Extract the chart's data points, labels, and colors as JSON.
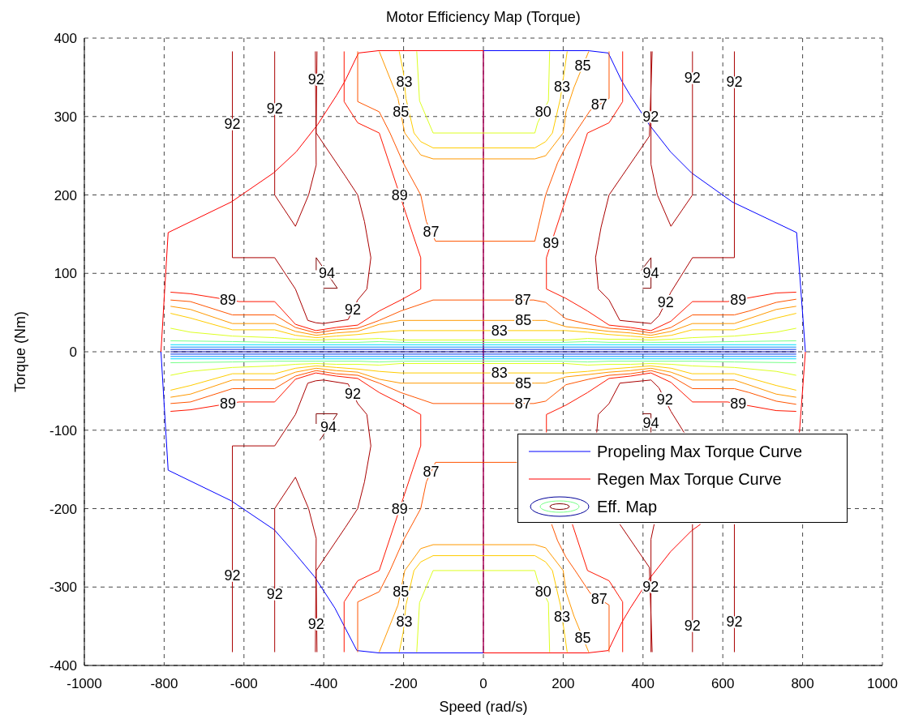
{
  "chart_data": {
    "type": "line",
    "title": "Motor Efficiency Map (Torque)",
    "xlabel": "Speed (rad/s)",
    "ylabel": "Torque (Nm)",
    "xlim": [
      -1000,
      1000
    ],
    "ylim": [
      -400,
      400
    ],
    "xticks": [
      -1000,
      -800,
      -600,
      -400,
      -200,
      0,
      200,
      400,
      600,
      800,
      1000
    ],
    "yticks": [
      -400,
      -300,
      -200,
      -100,
      0,
      100,
      200,
      300,
      400
    ],
    "grid": true,
    "legend": "bottom right",
    "series": [
      {
        "name": "Propeling Max Torque Curve",
        "color": "#0000ff",
        "x": [
          -808,
          -790,
          -632,
          -524,
          -474,
          -423,
          -372,
          -317,
          -262,
          0,
          0,
          262,
          313,
          347,
          368,
          415,
          469,
          522,
          624,
          785,
          807
        ],
        "values": [
          0,
          -151,
          -190,
          -227,
          -256,
          -287,
          -327,
          -381,
          -384,
          -384,
          384,
          384,
          381,
          345,
          327,
          290,
          255,
          228,
          191,
          152,
          0
        ]
      },
      {
        "name": "Regen Max Torque Curve",
        "color": "#ff0000",
        "x": [
          -808,
          -790,
          -632,
          -526,
          -469,
          -415,
          -368,
          -347,
          -313,
          -262,
          0,
          0,
          262,
          313,
          347,
          368,
          415,
          469,
          522,
          544,
          null,
          792,
          807
        ],
        "values": [
          0,
          152,
          191,
          228,
          255,
          290,
          327,
          345,
          381,
          384,
          384,
          -384,
          -384,
          -381,
          -345,
          -327,
          -290,
          -255,
          -228,
          -220,
          null,
          -103,
          0
        ]
      },
      {
        "name": "Eff. Map",
        "color": "#800000",
        "x": [
          -419,
          -419,
          -366,
          -401,
          null,
          396,
          420,
          420,
          399,
          null,
          -419,
          -419,
          -366,
          -410,
          null,
          399,
          420,
          420
        ],
        "values": [
          104,
          120,
          81,
          81,
          null,
          104,
          120,
          81,
          81,
          null,
          -92,
          -79,
          -79,
          -113,
          null,
          -79,
          -79,
          -103
        ]
      },
      {
        "color": "#aa0000",
        "x": [
          -417,
          -419,
          -346,
          -315,
          -298,
          -282,
          -292,
          -315,
          -339,
          -401,
          -420,
          -440,
          -471,
          -523,
          -629,
          -629,
          null,
          -523,
          -523,
          -471,
          -438,
          -419,
          -421,
          null,
          420,
          420,
          436,
          470,
          524,
          524,
          null,
          629,
          629,
          524,
          470,
          440,
          420,
          342,
          315,
          288,
          281,
          295,
          315,
          416,
          423,
          null,
          -417,
          -419,
          -346,
          -315,
          -298,
          -282,
          -292,
          -315,
          -339,
          -401,
          -420,
          -440,
          -471,
          -523,
          -629,
          -629,
          null,
          -523,
          -523,
          -471,
          -438,
          -419,
          -421,
          null,
          420,
          420,
          428,
          null,
          524,
          524,
          null,
          629,
          629,
          null,
          284,
          288,
          315,
          342,
          420,
          440,
          470,
          503,
          null,
          342,
          416,
          423
        ],
        "values": [
          383,
          279,
          224,
          200,
          166,
          120,
          80,
          66,
          41,
          36,
          37,
          40,
          80,
          120,
          120,
          383,
          null,
          383,
          200,
          160,
          200,
          238,
          383,
          null,
          383,
          239,
          200,
          160,
          200,
          383,
          null,
          383,
          120,
          120,
          76,
          46,
          36,
          40,
          66,
          80,
          120,
          159,
          200,
          275,
          383,
          null,
          -383,
          -279,
          -224,
          -200,
          -166,
          -120,
          -80,
          -66,
          -41,
          -36,
          -37,
          -40,
          -80,
          -120,
          -120,
          -383,
          null,
          -383,
          -200,
          -160,
          -200,
          -238,
          -383,
          null,
          -383,
          -239,
          -220,
          null,
          -220,
          -383,
          null,
          -383,
          -220,
          null,
          -103,
          -80,
          -66,
          -40,
          -36,
          -46,
          -76,
          -103,
          null,
          -220,
          -275,
          -383
        ]
      },
      {
        "color": "#ff1500",
        "x": [
          -349,
          -349,
          -315,
          -261,
          -177,
          -157,
          -157,
          -207,
          -261,
          -315,
          -369,
          -420,
          -471,
          -523,
          -612,
          -734,
          -784,
          null,
          349,
          349,
          315,
          261,
          180,
          158,
          158,
          207,
          261,
          315,
          369,
          420,
          470,
          524,
          612,
          734,
          784,
          null,
          -349,
          -349,
          -315,
          -261,
          -177,
          -157,
          -157,
          -207,
          -261,
          -315,
          -369,
          -420,
          -471,
          -523,
          -612,
          -734,
          -784,
          null,
          349,
          349,
          315,
          261,
          223,
          null,
          158,
          158,
          207,
          261,
          315,
          369,
          420,
          470,
          524,
          612,
          734,
          784
        ],
        "values": [
          383,
          319,
          292,
          279,
          150,
          120,
          80,
          66,
          52,
          34,
          31,
          27,
          35,
          64,
          64,
          74,
          76,
          null,
          383,
          319,
          292,
          279,
          154,
          120,
          80,
          68,
          52,
          34,
          31,
          27,
          39,
          64,
          64,
          75,
          76,
          null,
          -383,
          -319,
          -292,
          -279,
          -150,
          -120,
          -80,
          -66,
          -52,
          -34,
          -31,
          -27,
          -35,
          -64,
          -64,
          -74,
          -76,
          null,
          -383,
          -319,
          -292,
          -279,
          -220,
          null,
          -103,
          -80,
          -68,
          -52,
          -34,
          -31,
          -27,
          -39,
          -64,
          -64,
          -75,
          -76
        ]
      },
      {
        "color": "#ff5500",
        "x": [
          -315,
          -315,
          -261,
          -234,
          -201,
          -157,
          -143,
          -120,
          0,
          129,
          156,
          186,
          207,
          230,
          268,
          315,
          315,
          null,
          -784,
          -734,
          -629,
          -523,
          -471,
          -419,
          -369,
          -315,
          -261,
          -207,
          -126,
          126,
          156,
          207,
          264,
          315,
          369,
          420,
          470,
          524,
          629,
          666,
          734,
          784,
          null,
          -315,
          -315,
          -261,
          -234,
          -201,
          -157,
          -143,
          -120,
          0,
          84,
          null,
          171,
          186,
          207,
          230,
          268,
          315,
          315,
          null,
          -784,
          -734,
          -629,
          -523,
          -471,
          -419,
          -369,
          -315,
          -261,
          -207,
          -126,
          126,
          156,
          207,
          264,
          315,
          369,
          420,
          470,
          524,
          629,
          666,
          734,
          784
        ],
        "values": [
          383,
          319,
          306,
          279,
          241,
          200,
          166,
          141,
          141,
          141,
          200,
          241,
          262,
          279,
          308,
          323,
          383,
          null,
          66,
          64,
          47,
          47,
          31,
          24,
          28,
          30,
          40,
          52,
          66,
          66,
          63,
          42,
          35,
          30,
          28,
          24,
          31,
          47,
          47,
          52,
          63,
          67,
          null,
          -383,
          -319,
          -306,
          -279,
          -241,
          -200,
          -166,
          -141,
          -141,
          -141,
          null,
          -220,
          -241,
          -262,
          -279,
          -308,
          -323,
          -383,
          null,
          -66,
          -64,
          -47,
          -47,
          -31,
          -24,
          -28,
          -30,
          -40,
          -52,
          -66,
          -66,
          -63,
          -42,
          -35,
          -30,
          -28,
          -24,
          -31,
          -47,
          -47,
          -52,
          -63,
          -67
        ]
      },
      {
        "color": "#ff9900",
        "x": [
          -261,
          -214,
          -201,
          -197,
          -157,
          -126,
          0,
          129,
          156,
          200,
          207,
          227,
          264,
          null,
          -784,
          -734,
          -629,
          -523,
          -471,
          -419,
          -369,
          -315,
          -261,
          -207,
          -126,
          129,
          156,
          207,
          264,
          315,
          369,
          420,
          470,
          524,
          629,
          734,
          784,
          null,
          -261,
          -214,
          -201,
          -197,
          -157,
          -126,
          0,
          129,
          156,
          200,
          207,
          227,
          264,
          null,
          -784,
          -734,
          -629,
          -523,
          -471,
          -419,
          -369,
          -315,
          -261,
          -207,
          -126,
          129,
          156,
          207,
          264,
          315,
          369,
          420,
          470,
          524,
          629,
          734,
          784
        ],
        "values": [
          383,
          323,
          289,
          279,
          251,
          246,
          246,
          246,
          250,
          279,
          306,
          337,
          383,
          null,
          58,
          54,
          36,
          36,
          26,
          21,
          24,
          26,
          35,
          40,
          40,
          40,
          40,
          32,
          29,
          26,
          24,
          21,
          26,
          36,
          36,
          54,
          58,
          null,
          -383,
          -323,
          -289,
          -279,
          -251,
          -246,
          -246,
          -246,
          -250,
          -279,
          -306,
          -337,
          -383,
          null,
          -58,
          -54,
          -36,
          -36,
          -26,
          -21,
          -24,
          -26,
          -35,
          -40,
          -40,
          -40,
          -40,
          -32,
          -29,
          -26,
          -24,
          -21,
          -26,
          -36,
          -36,
          -54,
          -58
        ]
      },
      {
        "color": "#ffcc00",
        "x": [
          -211,
          -201,
          -194,
          -174,
          -157,
          -126,
          0,
          129,
          156,
          173,
          193,
          210,
          null,
          -784,
          -734,
          -629,
          -523,
          -471,
          -419,
          -369,
          -315,
          -261,
          -207,
          -126,
          126,
          207,
          261,
          315,
          369,
          419,
          471,
          523,
          629,
          734,
          784,
          null,
          -211,
          -201,
          -194,
          -174,
          -157,
          -126,
          0,
          129,
          156,
          173,
          193,
          210,
          null,
          -784,
          -734,
          -629,
          -523,
          -471,
          -419,
          -369,
          -315,
          -261,
          -207,
          -126,
          126,
          207,
          261,
          315,
          369,
          419,
          471,
          523,
          629,
          734,
          784
        ],
        "values": [
          383,
          358,
          323,
          279,
          268,
          260,
          260,
          260,
          268,
          279,
          323,
          383,
          null,
          49,
          43,
          28,
          28,
          21,
          18,
          20,
          22,
          25,
          27,
          27,
          27,
          27,
          25,
          22,
          20,
          18,
          21,
          28,
          28,
          43,
          49,
          null,
          -383,
          -358,
          -323,
          -279,
          -268,
          -260,
          -260,
          -260,
          -268,
          -279,
          -323,
          -383,
          null,
          -49,
          -43,
          -28,
          -28,
          -21,
          -18,
          -20,
          -22,
          -25,
          -27,
          -27,
          -27,
          -27,
          -25,
          -22,
          -20,
          -18,
          -21,
          -28,
          -28,
          -43,
          -49
        ]
      },
      {
        "color": "#ddff22",
        "x": [
          -167,
          -160,
          -126,
          0,
          129,
          136,
          163,
          166,
          null,
          -784,
          -734,
          -629,
          -523,
          -471,
          -419,
          -369,
          -315,
          -261,
          -207,
          0,
          207,
          261,
          315,
          369,
          419,
          471,
          523,
          629,
          734,
          784,
          null,
          -167,
          -160,
          -126,
          0,
          129,
          136,
          163,
          166,
          null,
          -784,
          -734,
          -629,
          -523,
          -471,
          -419,
          -369,
          -315,
          -261,
          -207,
          0,
          207,
          261,
          315,
          369,
          419,
          471,
          523,
          629,
          734,
          784
        ],
        "values": [
          383,
          320,
          279,
          279,
          279,
          292,
          320,
          383,
          null,
          30,
          25,
          20,
          18,
          16,
          15,
          16,
          16,
          17,
          15,
          15,
          15,
          17,
          16,
          16,
          15,
          16,
          18,
          20,
          25,
          30,
          null,
          -383,
          -320,
          -279,
          -279,
          -279,
          -292,
          -320,
          -383,
          null,
          -30,
          -25,
          -20,
          -18,
          -16,
          -15,
          -16,
          -16,
          -17,
          -15,
          -15,
          -15,
          -17,
          -16,
          -16,
          -15,
          -16,
          -18,
          -20,
          -25,
          -30
        ]
      },
      {
        "color": "#77ff88",
        "x": [
          -784,
          -629,
          -523,
          -419,
          -315,
          -261,
          -200,
          0,
          200,
          261,
          315,
          419,
          523,
          629,
          784
        ],
        "values": [
          14,
          13,
          12,
          12,
          12,
          13,
          12,
          12,
          12,
          13,
          12,
          12,
          12,
          13,
          14
        ]
      },
      {
        "color": "#77ff88",
        "x": [
          -784,
          -629,
          -523,
          -419,
          -315,
          -261,
          -200,
          0,
          200,
          261,
          315,
          419,
          523,
          629,
          784
        ],
        "values": [
          -14,
          -13,
          -12,
          -12,
          -12,
          -13,
          -12,
          -12,
          -12,
          -13,
          -12,
          -12,
          -12,
          -13,
          -14
        ]
      },
      {
        "color": "#00ddff",
        "x": [
          -784,
          784
        ],
        "values": [
          9,
          9
        ]
      },
      {
        "color": "#00ddff",
        "x": [
          -784,
          784
        ],
        "values": [
          -9,
          -9
        ]
      },
      {
        "color": "#0090ff",
        "x": [
          -784,
          784
        ],
        "values": [
          6,
          6
        ]
      },
      {
        "color": "#0090ff",
        "x": [
          -784,
          784
        ],
        "values": [
          -6,
          -6
        ]
      },
      {
        "color": "#0030ee",
        "x": [
          -784,
          784
        ],
        "values": [
          3,
          3
        ]
      },
      {
        "color": "#0030ee",
        "x": [
          -784,
          784
        ],
        "values": [
          -3,
          -3
        ]
      },
      {
        "color": "#000099",
        "x": [
          -784,
          784
        ],
        "values": [
          0,
          0
        ]
      }
    ],
    "annotations": [
      {
        "text": "92",
        "x": -629,
        "y": 290
      },
      {
        "text": "92",
        "x": -523,
        "y": 310
      },
      {
        "text": "92",
        "x": -419,
        "y": 347
      },
      {
        "text": "83",
        "x": -198,
        "y": 344
      },
      {
        "text": "85",
        "x": -207,
        "y": 306
      },
      {
        "text": "87",
        "x": -131,
        "y": 153
      },
      {
        "text": "89",
        "x": -210,
        "y": 200
      },
      {
        "text": "94",
        "x": -392,
        "y": 100
      },
      {
        "text": "92",
        "x": -327,
        "y": 54
      },
      {
        "text": "89",
        "x": -640,
        "y": 66
      },
      {
        "text": "80",
        "x": 150,
        "y": 306
      },
      {
        "text": "83",
        "x": 197,
        "y": 338
      },
      {
        "text": "85",
        "x": 249,
        "y": 365
      },
      {
        "text": "87",
        "x": 290,
        "y": 315
      },
      {
        "text": "92",
        "x": 419,
        "y": 300
      },
      {
        "text": "92",
        "x": 524,
        "y": 349
      },
      {
        "text": "92",
        "x": 629,
        "y": 344
      },
      {
        "text": "89",
        "x": 169,
        "y": 138
      },
      {
        "text": "94",
        "x": 420,
        "y": 100
      },
      {
        "text": "92",
        "x": 457,
        "y": 63
      },
      {
        "text": "89",
        "x": 639,
        "y": 66
      },
      {
        "text": "87",
        "x": 99,
        "y": 66
      },
      {
        "text": "85",
        "x": 100,
        "y": 40
      },
      {
        "text": "83",
        "x": 40,
        "y": 27
      },
      {
        "text": "83",
        "x": 40,
        "y": -27
      },
      {
        "text": "85",
        "x": 100,
        "y": -40
      },
      {
        "text": "87",
        "x": 99,
        "y": -66
      },
      {
        "text": "92",
        "x": -629,
        "y": -285
      },
      {
        "text": "92",
        "x": -523,
        "y": -309
      },
      {
        "text": "92",
        "x": -419,
        "y": -347
      },
      {
        "text": "83",
        "x": -198,
        "y": -344
      },
      {
        "text": "85",
        "x": -207,
        "y": -306
      },
      {
        "text": "87",
        "x": -131,
        "y": -153
      },
      {
        "text": "89",
        "x": -210,
        "y": -200
      },
      {
        "text": "94",
        "x": -388,
        "y": -96
      },
      {
        "text": "92",
        "x": -327,
        "y": -54
      },
      {
        "text": "89",
        "x": -640,
        "y": -66
      },
      {
        "text": "80",
        "x": 150,
        "y": -306
      },
      {
        "text": "83",
        "x": 197,
        "y": -338
      },
      {
        "text": "85",
        "x": 249,
        "y": -365
      },
      {
        "text": "87",
        "x": 290,
        "y": -315
      },
      {
        "text": "92",
        "x": 419,
        "y": -300
      },
      {
        "text": "92",
        "x": 524,
        "y": -349
      },
      {
        "text": "92",
        "x": 629,
        "y": -344
      },
      {
        "text": "92",
        "x": 455,
        "y": -61
      },
      {
        "text": "94",
        "x": 420,
        "y": -91
      },
      {
        "text": "89",
        "x": 639,
        "y": -66
      }
    ]
  }
}
